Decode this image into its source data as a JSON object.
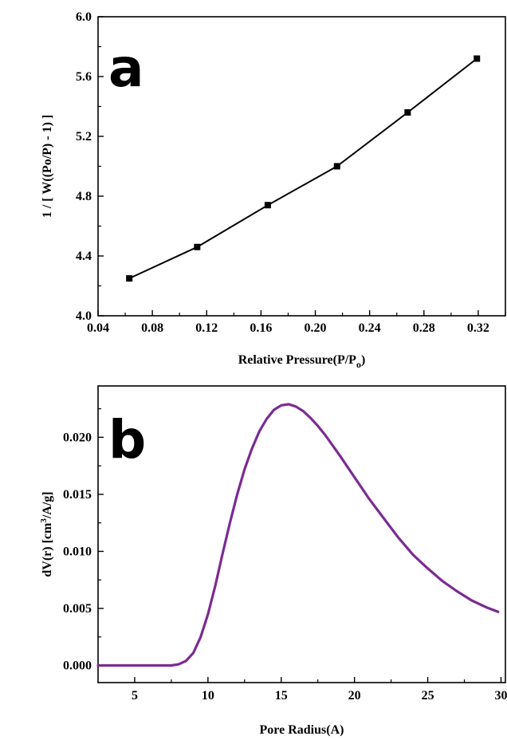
{
  "chart_data": [
    {
      "panel": "a",
      "type": "line",
      "xlabel": "Relative Pressure(P/P",
      "xlabel_sub": "o",
      "xlabel_suffix": ")",
      "ylabel": "1 / [ W((Po/P) - 1) ]",
      "xlim": [
        0.04,
        0.34
      ],
      "ylim": [
        4.0,
        6.0
      ],
      "xticks": [
        "0.04",
        "0.08",
        "0.12",
        "0.16",
        "0.20",
        "0.24",
        "0.28",
        "0.32"
      ],
      "yticks": [
        "4.0",
        "4.4",
        "4.8",
        "5.2",
        "5.6",
        "6.0"
      ],
      "markers": true,
      "color": "#000000",
      "x": [
        0.063,
        0.113,
        0.165,
        0.216,
        0.268,
        0.319
      ],
      "y": [
        4.25,
        4.46,
        4.74,
        5.0,
        5.36,
        5.72
      ]
    },
    {
      "panel": "b",
      "type": "line",
      "xlabel": "Pore Radius(A)",
      "ylabel_prefix": "dV(r) [cm",
      "ylabel_sup": "3",
      "ylabel_suffix": "/A/g]",
      "xlim": [
        2.5,
        30.3
      ],
      "ylim": [
        -0.0015,
        0.0245
      ],
      "xticks": [
        "5",
        "10",
        "15",
        "20",
        "25",
        "30"
      ],
      "yticks": [
        "0.000",
        "0.005",
        "0.010",
        "0.015",
        "0.020"
      ],
      "markers": false,
      "color": "#7b2b93",
      "x": [
        2.5,
        5,
        7.5,
        8.0,
        8.5,
        9.0,
        9.5,
        10.0,
        10.5,
        11.0,
        11.5,
        12.0,
        12.5,
        13.0,
        13.5,
        14.0,
        14.5,
        15.0,
        15.5,
        16.0,
        16.5,
        17.0,
        17.5,
        18.0,
        19.0,
        20.0,
        21.0,
        22.0,
        23.0,
        24.0,
        25.0,
        26.0,
        27.0,
        28.0,
        29.0,
        29.8
      ],
      "y": [
        0.0,
        0.0,
        0.0,
        0.0001,
        0.0004,
        0.0011,
        0.0025,
        0.0045,
        0.007,
        0.0098,
        0.0125,
        0.015,
        0.0172,
        0.019,
        0.0205,
        0.0216,
        0.0224,
        0.0228,
        0.0229,
        0.0227,
        0.0223,
        0.0217,
        0.021,
        0.0202,
        0.0184,
        0.0165,
        0.0146,
        0.0129,
        0.0112,
        0.0097,
        0.0085,
        0.0074,
        0.0065,
        0.0057,
        0.0051,
        0.0047
      ]
    }
  ]
}
